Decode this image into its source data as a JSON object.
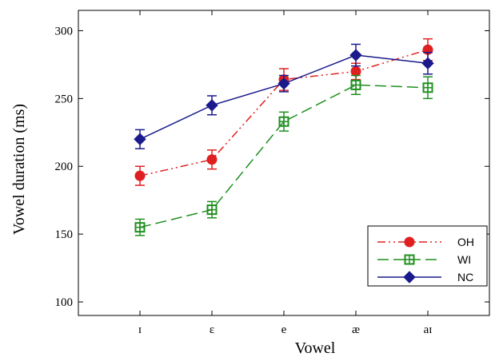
{
  "chart_data": {
    "type": "line",
    "xlabel": "Vowel",
    "ylabel": "Vowel duration (ms)",
    "categories": [
      "ɪ",
      "ɛ",
      "e",
      "æ",
      "aɪ"
    ],
    "ylim": [
      90,
      315
    ],
    "yticks": [
      100,
      150,
      200,
      250,
      300
    ],
    "grid": false,
    "legend_position": "bottom-right",
    "series": [
      {
        "name": "OH",
        "color": "#e02020",
        "marker": "circle",
        "line_style": "dash-dot-dot",
        "values": [
          193,
          205,
          264,
          270,
          286
        ],
        "errors": [
          7,
          7,
          8,
          6,
          8
        ]
      },
      {
        "name": "WI",
        "color": "#1f8f1f",
        "marker": "square-crossed",
        "line_style": "dashed",
        "values": [
          155,
          168,
          233,
          260,
          258
        ],
        "errors": [
          6,
          6,
          7,
          7,
          8
        ]
      },
      {
        "name": "NC",
        "color": "#1a1a8c",
        "marker": "diamond",
        "line_style": "solid",
        "values": [
          220,
          245,
          261,
          282,
          276
        ],
        "errors": [
          7,
          7,
          6,
          8,
          8
        ]
      }
    ]
  }
}
